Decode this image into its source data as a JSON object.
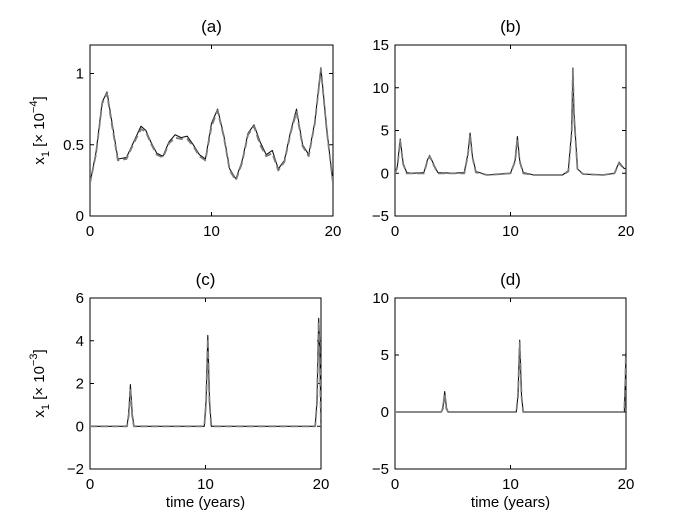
{
  "chart_data": [
    {
      "type": "line",
      "title": "(a)",
      "xlabel": "",
      "ylabel": "x_1 [× 10^-4]",
      "xlim": [
        0,
        20
      ],
      "ylim": [
        0,
        1.2
      ],
      "xticks": [
        0,
        10,
        20
      ],
      "yticks": [
        0,
        0.5,
        1
      ],
      "ytick_labels": [
        "0",
        "0.5",
        "1"
      ],
      "grid": false,
      "series": [
        {
          "style": "solid",
          "x": [
            0,
            0.5,
            1,
            1.4,
            1.8,
            2.3,
            3,
            3.6,
            4.2,
            4.6,
            5,
            5.5,
            6,
            6.5,
            7,
            7.5,
            8,
            8.5,
            9,
            9.5,
            10,
            10.5,
            11,
            11.5,
            12,
            12.5,
            13,
            13.5,
            14,
            14.5,
            15,
            15.5,
            16,
            16.5,
            17,
            17.5,
            18,
            18.5,
            19,
            19.5,
            20
          ],
          "y": [
            0.23,
            0.45,
            0.8,
            0.87,
            0.66,
            0.4,
            0.41,
            0.52,
            0.63,
            0.6,
            0.52,
            0.44,
            0.42,
            0.52,
            0.57,
            0.55,
            0.56,
            0.5,
            0.43,
            0.4,
            0.65,
            0.75,
            0.57,
            0.33,
            0.26,
            0.38,
            0.58,
            0.64,
            0.52,
            0.43,
            0.46,
            0.33,
            0.39,
            0.59,
            0.75,
            0.5,
            0.43,
            0.66,
            1.04,
            0.6,
            0.23
          ]
        },
        {
          "style": "dashed",
          "x": [
            0,
            0.5,
            1,
            1.4,
            1.8,
            2.3,
            3,
            3.6,
            4.2,
            4.6,
            5,
            5.5,
            6,
            6.5,
            7,
            7.5,
            8,
            8.5,
            9,
            9.5,
            10,
            10.5,
            11,
            11.5,
            12,
            12.5,
            13,
            13.5,
            14,
            14.5,
            15,
            15.5,
            16,
            16.5,
            17,
            17.5,
            18,
            18.5,
            19,
            19.5,
            20
          ],
          "y": [
            0.23,
            0.44,
            0.79,
            0.86,
            0.64,
            0.39,
            0.4,
            0.51,
            0.61,
            0.59,
            0.51,
            0.43,
            0.41,
            0.51,
            0.55,
            0.54,
            0.54,
            0.49,
            0.42,
            0.39,
            0.63,
            0.74,
            0.56,
            0.32,
            0.25,
            0.37,
            0.57,
            0.63,
            0.5,
            0.42,
            0.44,
            0.32,
            0.38,
            0.58,
            0.73,
            0.49,
            0.42,
            0.65,
            1.03,
            0.59,
            0.23
          ]
        }
      ]
    },
    {
      "type": "line",
      "title": "(b)",
      "xlabel": "",
      "ylabel": "",
      "xlim": [
        0,
        20
      ],
      "ylim": [
        -5,
        15
      ],
      "xticks": [
        0,
        10,
        20
      ],
      "yticks": [
        -5,
        0,
        5,
        10,
        15
      ],
      "ytick_labels": [
        "−5",
        "0",
        "5",
        "10",
        "15"
      ],
      "grid": false,
      "series": [
        {
          "style": "solid",
          "x": [
            0,
            0.2,
            0.45,
            0.7,
            1,
            1.5,
            2.5,
            2.8,
            3,
            3.3,
            3.7,
            5,
            6,
            6.3,
            6.5,
            6.7,
            7,
            8,
            10,
            10.4,
            10.6,
            10.8,
            11.1,
            12,
            14.5,
            15,
            15.3,
            15.4,
            15.5,
            15.8,
            16.3,
            18,
            19,
            19.4,
            19.8,
            20
          ],
          "y": [
            0,
            0.8,
            4,
            1.2,
            0.1,
            0,
            0.1,
            1.5,
            2.1,
            1.2,
            0.1,
            0,
            0.1,
            2.2,
            4.7,
            2,
            0.2,
            -0.2,
            0,
            1.5,
            4.3,
            1.5,
            0.1,
            -0.2,
            -0.2,
            0.3,
            5,
            12.3,
            7,
            0.5,
            -0.1,
            -0.2,
            0,
            1.3,
            0.6,
            0.5
          ]
        },
        {
          "style": "dashed",
          "x": [
            0,
            0.2,
            0.45,
            0.7,
            1,
            1.5,
            2.5,
            2.8,
            3,
            3.3,
            3.7,
            5,
            6,
            6.3,
            6.5,
            6.7,
            7,
            8,
            10,
            10.4,
            10.6,
            10.8,
            11.1,
            12,
            14.5,
            15,
            15.3,
            15.4,
            15.5,
            15.8,
            16.3,
            18,
            19,
            19.4,
            19.8,
            20
          ],
          "y": [
            0,
            0.7,
            3.8,
            1.1,
            0,
            0,
            0,
            1.4,
            2,
            1.1,
            0,
            0,
            0,
            2.1,
            4.5,
            1.9,
            0.1,
            -0.2,
            0,
            1.4,
            4.1,
            1.4,
            0,
            -0.2,
            -0.2,
            0.2,
            4.8,
            12.1,
            6.8,
            0.4,
            -0.1,
            -0.2,
            0,
            1.2,
            0.5,
            0.4
          ]
        }
      ]
    },
    {
      "type": "line",
      "title": "(c)",
      "xlabel": "time (years)",
      "ylabel": "x_1 [× 10^-3]",
      "xlim": [
        0,
        20
      ],
      "ylim": [
        -2,
        6
      ],
      "xticks": [
        0,
        10,
        20
      ],
      "yticks": [
        -2,
        0,
        2,
        4,
        6
      ],
      "ytick_labels": [
        "−2",
        "0",
        "2",
        "4",
        "6"
      ],
      "grid": false,
      "series": [
        {
          "style": "solid",
          "x": [
            0,
            3.2,
            3.35,
            3.5,
            3.65,
            3.8,
            9.9,
            10.05,
            10.2,
            10.35,
            10.5,
            19.5,
            19.65,
            19.8,
            19.9,
            20
          ],
          "y": [
            0,
            0,
            0.6,
            1.95,
            0.6,
            0,
            0,
            1.2,
            4.25,
            1.2,
            0,
            0,
            1.2,
            5.05,
            3.5,
            0
          ]
        },
        {
          "style": "dashed",
          "x": [
            0,
            3.2,
            3.35,
            3.5,
            3.65,
            3.8,
            9.9,
            10.05,
            10.2,
            10.35,
            10.5,
            19.5,
            19.65,
            19.8,
            19.9,
            20
          ],
          "y": [
            0,
            0,
            0.5,
            1.8,
            0.5,
            0,
            0,
            1.1,
            4.1,
            1.1,
            0,
            0,
            1.1,
            4.9,
            3.4,
            0
          ]
        }
      ]
    },
    {
      "type": "line",
      "title": "(d)",
      "xlabel": "time (years)",
      "ylabel": "",
      "xlim": [
        0,
        20
      ],
      "ylim": [
        -5,
        10
      ],
      "xticks": [
        0,
        10,
        20
      ],
      "yticks": [
        -5,
        0,
        5,
        10
      ],
      "ytick_labels": [
        "−5",
        "0",
        "5",
        "10"
      ],
      "grid": false,
      "series": [
        {
          "style": "solid",
          "x": [
            0,
            4,
            4.15,
            4.3,
            4.45,
            4.6,
            10.5,
            10.65,
            10.8,
            10.95,
            11.1,
            19.85,
            19.95,
            20
          ],
          "y": [
            0,
            0,
            0.4,
            1.8,
            0.4,
            0,
            0,
            1.5,
            6.3,
            1.5,
            0,
            0,
            3,
            5.8
          ]
        },
        {
          "style": "dashed",
          "x": [
            0,
            4,
            4.15,
            4.3,
            4.45,
            4.6,
            10.5,
            10.65,
            10.8,
            10.95,
            11.1,
            19.85,
            19.95,
            20
          ],
          "y": [
            0,
            0,
            0.3,
            1.6,
            0.3,
            0,
            0,
            1.4,
            6.1,
            1.4,
            0,
            0,
            2.8,
            5.6
          ]
        }
      ]
    }
  ]
}
